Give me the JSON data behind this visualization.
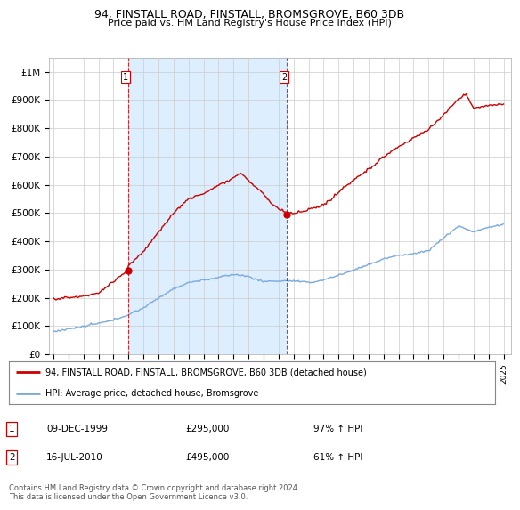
{
  "title": "94, FINSTALL ROAD, FINSTALL, BROMSGROVE, B60 3DB",
  "subtitle": "Price paid vs. HM Land Registry's House Price Index (HPI)",
  "hpi_color": "#7aaadd",
  "price_color": "#cc0000",
  "shade_color": "#ddeeff",
  "marker1_price": 295000,
  "marker1_year": 1999.958,
  "marker1_date_str": "09-DEC-1999",
  "marker1_pct": "97% ↑ HPI",
  "marker2_price": 495000,
  "marker2_year": 2010.542,
  "marker2_date_str": "16-JUL-2010",
  "marker2_pct": "61% ↑ HPI",
  "legend_line1": "94, FINSTALL ROAD, FINSTALL, BROMSGROVE, B60 3DB (detached house)",
  "legend_line2": "HPI: Average price, detached house, Bromsgrove",
  "footer": "Contains HM Land Registry data © Crown copyright and database right 2024.\nThis data is licensed under the Open Government Licence v3.0.",
  "ylabel_ticks": [
    "£0",
    "£100K",
    "£200K",
    "£300K",
    "£400K",
    "£500K",
    "£600K",
    "£700K",
    "£800K",
    "£900K",
    "£1M"
  ],
  "ytick_values": [
    0,
    100000,
    200000,
    300000,
    400000,
    500000,
    600000,
    700000,
    800000,
    900000,
    1000000
  ],
  "background_color": "#ffffff",
  "grid_color": "#cccccc",
  "xmin": 1994.7,
  "xmax": 2025.5,
  "ymin": 0,
  "ymax": 1050000
}
